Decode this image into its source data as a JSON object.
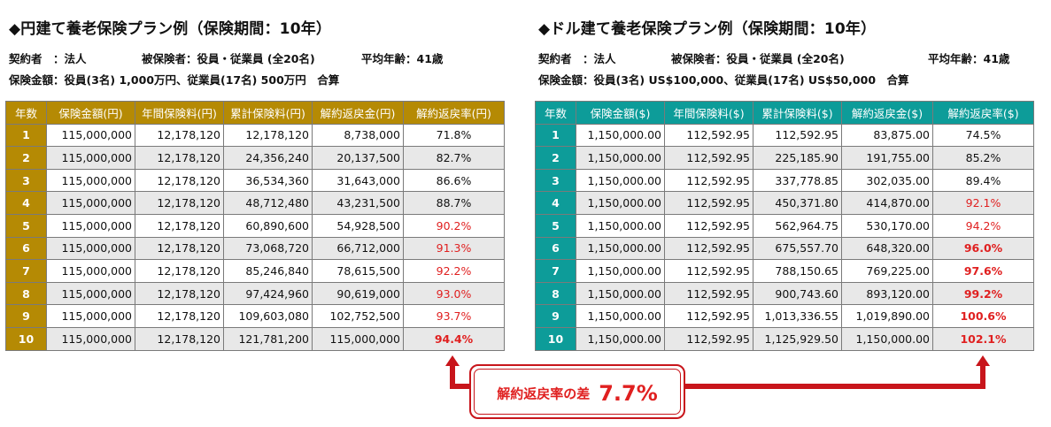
{
  "yen": {
    "title": "◆円建て養老保険プラン例（保険期間：10年）",
    "info1": {
      "a": "契約者　：法人",
      "b": "被保険者：役員・従業員 (全20名)",
      "c": "平均年齢：41歳"
    },
    "info2": {
      "a": "保険金額：役員(3名) 1,000万円、従業員(17名) 500万円　合算"
    },
    "headers": [
      "年数",
      "保険金額(円)",
      "年間保険料(円)",
      "累計保険料(円)",
      "解約返戻金(円)",
      "解約返戻率(円)"
    ],
    "rows": [
      [
        "1",
        "115,000,000",
        "12,178,120",
        "12,178,120",
        "8,738,000",
        "71.8%"
      ],
      [
        "2",
        "115,000,000",
        "12,178,120",
        "24,356,240",
        "20,137,500",
        "82.7%"
      ],
      [
        "3",
        "115,000,000",
        "12,178,120",
        "36,534,360",
        "31,643,000",
        "86.6%"
      ],
      [
        "4",
        "115,000,000",
        "12,178,120",
        "48,712,480",
        "43,231,500",
        "88.7%"
      ],
      [
        "5",
        "115,000,000",
        "12,178,120",
        "60,890,600",
        "54,928,500",
        "90.2%"
      ],
      [
        "6",
        "115,000,000",
        "12,178,120",
        "73,068,720",
        "66,712,000",
        "91.3%"
      ],
      [
        "7",
        "115,000,000",
        "12,178,120",
        "85,246,840",
        "78,615,500",
        "92.2%"
      ],
      [
        "8",
        "115,000,000",
        "12,178,120",
        "97,424,960",
        "90,619,000",
        "93.0%"
      ],
      [
        "9",
        "115,000,000",
        "12,178,120",
        "109,603,080",
        "102,752,500",
        "93.7%"
      ],
      [
        "10",
        "115,000,000",
        "12,178,120",
        "121,781,200",
        "115,000,000",
        "94.4%"
      ]
    ],
    "rate_styles": [
      "",
      "",
      "",
      "",
      "red",
      "red",
      "red",
      "red",
      "red",
      "redb"
    ],
    "header_color": "#b58a04"
  },
  "dollar": {
    "title": "◆ドル建て養老保険プラン例（保険期間：10年）",
    "info1": {
      "a": "契約者　：法人",
      "b": "被保険者：役員・従業員 (全20名)",
      "c": "平均年齢：41歳"
    },
    "info2": {
      "a": "保険金額：役員(3名) US$100,000、従業員(17名) US$50,000　合算"
    },
    "headers": [
      "年数",
      "保険金額($)",
      "年間保険料($)",
      "累計保険料($)",
      "解約返戻金($)",
      "解約返戻率($)"
    ],
    "rows": [
      [
        "1",
        "1,150,000.00",
        "112,592.95",
        "112,592.95",
        "83,875.00",
        "74.5%"
      ],
      [
        "2",
        "1,150,000.00",
        "112,592.95",
        "225,185.90",
        "191,755.00",
        "85.2%"
      ],
      [
        "3",
        "1,150,000.00",
        "112,592.95",
        "337,778.85",
        "302,035.00",
        "89.4%"
      ],
      [
        "4",
        "1,150,000.00",
        "112,592.95",
        "450,371.80",
        "414,870.00",
        "92.1%"
      ],
      [
        "5",
        "1,150,000.00",
        "112,592.95",
        "562,964.75",
        "530,170.00",
        "94.2%"
      ],
      [
        "6",
        "1,150,000.00",
        "112,592.95",
        "675,557.70",
        "648,320.00",
        "96.0%"
      ],
      [
        "7",
        "1,150,000.00",
        "112,592.95",
        "788,150.65",
        "769,225.00",
        "97.6%"
      ],
      [
        "8",
        "1,150,000.00",
        "112,592.95",
        "900,743.60",
        "893,120.00",
        "99.2%"
      ],
      [
        "9",
        "1,150,000.00",
        "112,592.95",
        "1,013,336.55",
        "1,019,890.00",
        "100.6%"
      ],
      [
        "10",
        "1,150,000.00",
        "112,592.95",
        "1,125,929.50",
        "1,150,000.00",
        "102.1%"
      ]
    ],
    "rate_styles": [
      "",
      "",
      "",
      "red",
      "red",
      "redb",
      "redb",
      "redb",
      "redb",
      "redb"
    ],
    "header_color": "#0d9c99"
  },
  "callout": {
    "label": "解約返戻率の差",
    "value": "7.7%",
    "color": "#c8151b"
  }
}
